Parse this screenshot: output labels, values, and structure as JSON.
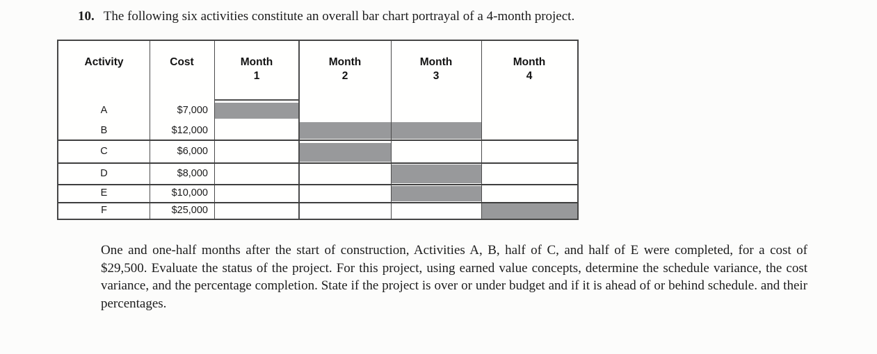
{
  "problem": {
    "number": "10.",
    "statement": "The following six activities constitute an overall bar chart portrayal of a 4-month project."
  },
  "gantt": {
    "headers": {
      "activity": "Activity",
      "cost": "Cost"
    },
    "month_headers": [
      {
        "word": "Month",
        "num": "1"
      },
      {
        "word": "Month",
        "num": "2"
      },
      {
        "word": "Month",
        "num": "3"
      },
      {
        "word": "Month",
        "num": "4"
      }
    ],
    "rows": [
      {
        "activity": "A",
        "cost": "$7,000",
        "bar_start_month": 1,
        "bar_end_month": 1
      },
      {
        "activity": "B",
        "cost": "$12,000",
        "bar_start_month": 2,
        "bar_end_month": 3
      },
      {
        "activity": "C",
        "cost": "$6,000",
        "bar_start_month": 2,
        "bar_end_month": 2
      },
      {
        "activity": "D",
        "cost": "$8,000",
        "bar_start_month": 3,
        "bar_end_month": 3
      },
      {
        "activity": "E",
        "cost": "$10,000",
        "bar_start_month": 3,
        "bar_end_month": 3
      },
      {
        "activity": "F",
        "cost": "$25,000",
        "bar_start_month": 4,
        "bar_end_month": 4
      }
    ],
    "bar_color": "#98999b"
  },
  "chart_data": {
    "type": "bar",
    "title": "Bar chart portrayal of a 4-month project",
    "categories": [
      "A",
      "B",
      "C",
      "D",
      "E",
      "F"
    ],
    "series": [
      {
        "name": "cost_dollars",
        "values": [
          7000,
          12000,
          6000,
          8000,
          10000,
          25000
        ]
      },
      {
        "name": "start_month",
        "values": [
          1,
          2,
          2,
          3,
          3,
          4
        ]
      },
      {
        "name": "end_month",
        "values": [
          1,
          3,
          2,
          3,
          3,
          4
        ]
      }
    ],
    "x_categories": [
      "Month 1",
      "Month 2",
      "Month 3",
      "Month 4"
    ],
    "xlabel": "Month",
    "ylabel": "Activity",
    "legend": "none",
    "grid": "table-lines"
  },
  "paragraph": {
    "text": "One and one-half months after the start of construction, Activities A, B, half of C, and half of E were completed, for a cost of $29,500. Evaluate the status of the project. For this project, using earned value concepts, determine the schedule variance, the cost variance, and the percentage completion. State if the project is over or under budget and if it is ahead of or behind schedule. and their percentages."
  }
}
